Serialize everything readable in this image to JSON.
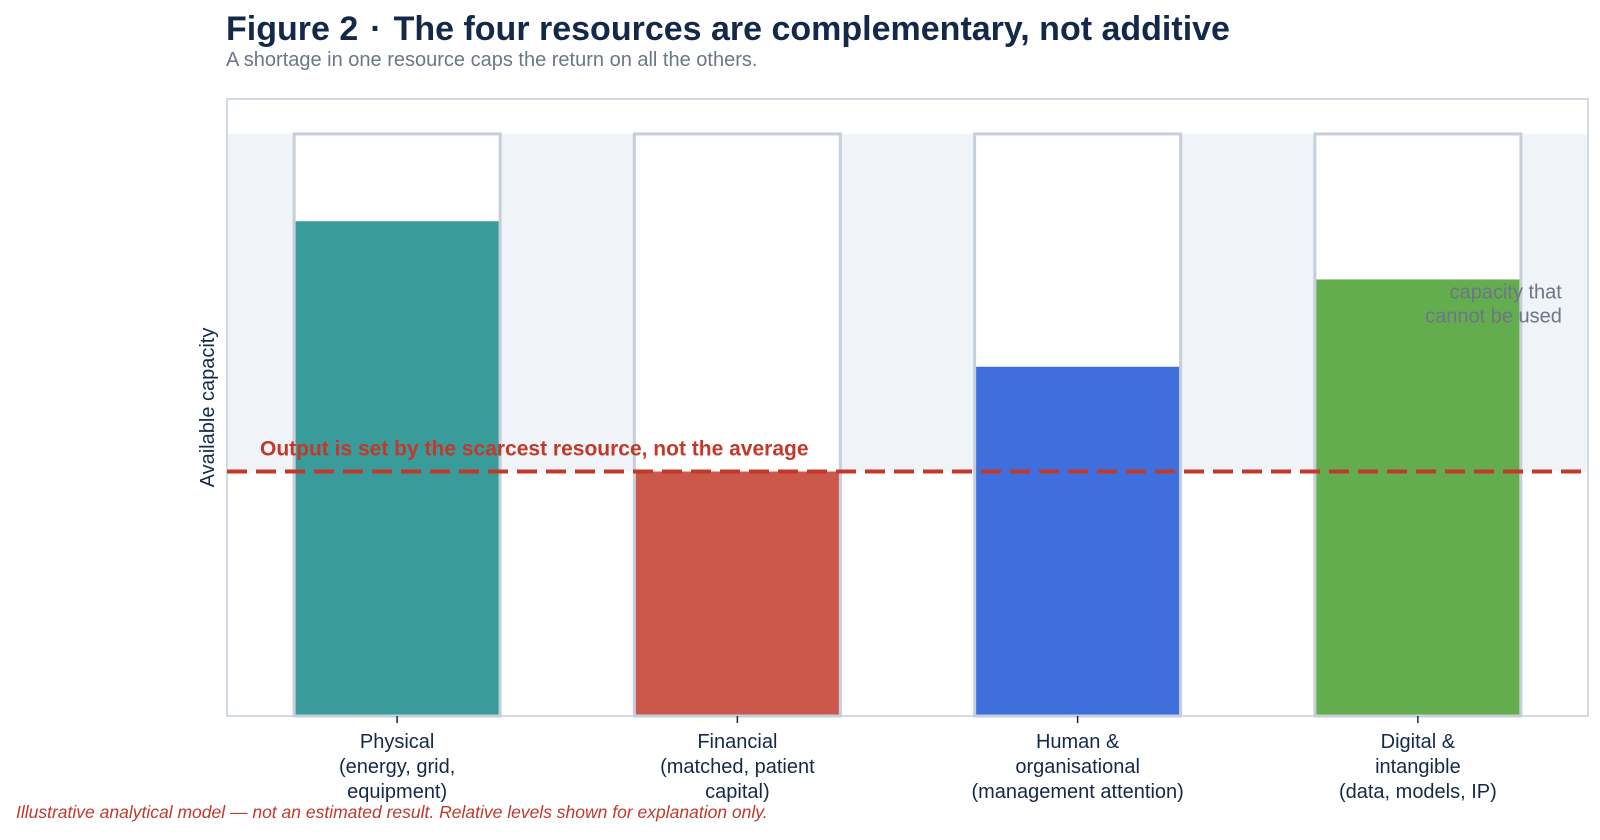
{
  "header": {
    "figure_label": "Figure 2",
    "separator": "·",
    "title": "The four resources are complementary, not additive",
    "subtitle": "A shortage in one resource caps the return on all the others."
  },
  "footnote": "Illustrative analytical model — not an estimated result. Relative levels shown for explanation only.",
  "colors": {
    "physical": "#3a9b9b",
    "financial": "#cc574b",
    "human": "#3f6fdc",
    "digital": "#64ad4e",
    "reference_line": "#c0392b",
    "capacity_band": "#f0f3f7",
    "bar_outline": "#c4cfdb"
  },
  "chart_data": {
    "type": "bar",
    "title": "The four resources are complementary, not additive",
    "ylabel": "Available capacity",
    "xlabel": "",
    "ylim": [
      0,
      1.06
    ],
    "grid": false,
    "categories": [
      [
        "Physical",
        "(energy, grid,",
        "equipment)"
      ],
      [
        "Financial",
        "(matched, patient",
        "capital)"
      ],
      [
        "Human &",
        "organisational",
        "(management attention)"
      ],
      [
        "Digital &",
        "intangible",
        "(data, models, IP)"
      ]
    ],
    "capacity_max": 1.0,
    "values": [
      0.85,
      0.42,
      0.6,
      0.75
    ],
    "reference_line": {
      "value": 0.42,
      "label": "Output is set by the scarcest resource, not the average",
      "style": "dashed"
    },
    "annotation": {
      "lines": [
        "capacity that",
        "cannot be used"
      ],
      "category_index": 3
    }
  }
}
